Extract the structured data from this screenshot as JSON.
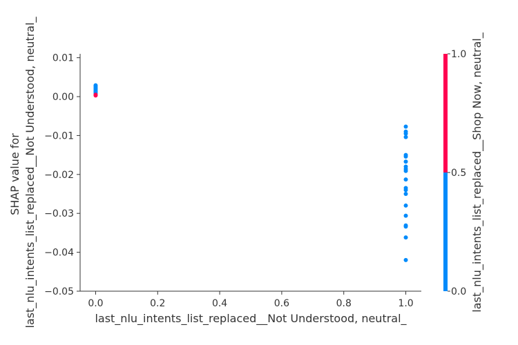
{
  "chart_data": {
    "type": "scatter",
    "title": "",
    "xlabel": "last_nlu_intents_list_replaced__Not Understood, neutral_",
    "ylabel_line1": "SHAP value for",
    "ylabel_line2": "last_nlu_intents_list_replaced__Not Understood, neutral_",
    "xlim": [
      -0.05,
      1.05
    ],
    "ylim": [
      -0.05,
      0.011
    ],
    "xticks": [
      0.0,
      0.2,
      0.4,
      0.6,
      0.8,
      1.0
    ],
    "xtick_labels": [
      "0.0",
      "0.2",
      "0.4",
      "0.6",
      "0.8",
      "1.0"
    ],
    "yticks": [
      0.01,
      0.0,
      -0.01,
      -0.02,
      -0.03,
      -0.04,
      -0.05
    ],
    "ytick_labels": [
      "0.01",
      "0.00",
      "−0.01",
      "−0.02",
      "−0.03",
      "−0.04",
      "−0.05"
    ],
    "grid": false,
    "colorbar": {
      "label": "last_nlu_intents_list_replaced__Shop Now, neutral_",
      "ticks": [
        0.0,
        0.5,
        1.0
      ],
      "tick_labels": [
        "0.0",
        "0.5",
        "1.0"
      ],
      "low_color": "#008bfb",
      "high_color": "#ff0051"
    },
    "points": [
      {
        "x": 0.0,
        "y": 0.0029,
        "c": 0
      },
      {
        "x": 0.0,
        "y": 0.0026,
        "c": 0
      },
      {
        "x": 0.0,
        "y": 0.0023,
        "c": 0
      },
      {
        "x": 0.0,
        "y": 0.002,
        "c": 0
      },
      {
        "x": 0.0,
        "y": 0.0017,
        "c": 0
      },
      {
        "x": 0.0,
        "y": 0.0014,
        "c": 0
      },
      {
        "x": 0.0,
        "y": 0.0011,
        "c": 0
      },
      {
        "x": 0.0,
        "y": 0.0008,
        "c": 0
      },
      {
        "x": 0.0,
        "y": 0.0005,
        "c": 1
      },
      {
        "x": 0.0,
        "y": 0.0003,
        "c": 1
      },
      {
        "x": 1.0,
        "y": -0.0077,
        "c": 0
      },
      {
        "x": 1.0,
        "y": -0.009,
        "c": 0
      },
      {
        "x": 1.0,
        "y": -0.0095,
        "c": 0
      },
      {
        "x": 1.0,
        "y": -0.0104,
        "c": 0
      },
      {
        "x": 1.0,
        "y": -0.015,
        "c": 0
      },
      {
        "x": 1.0,
        "y": -0.0154,
        "c": 0
      },
      {
        "x": 1.0,
        "y": -0.0167,
        "c": 0
      },
      {
        "x": 1.0,
        "y": -0.018,
        "c": 0
      },
      {
        "x": 1.0,
        "y": -0.0186,
        "c": 0
      },
      {
        "x": 1.0,
        "y": -0.0191,
        "c": 0
      },
      {
        "x": 1.0,
        "y": -0.0213,
        "c": 0
      },
      {
        "x": 1.0,
        "y": -0.0235,
        "c": 0
      },
      {
        "x": 1.0,
        "y": -0.024,
        "c": 0
      },
      {
        "x": 1.0,
        "y": -0.025,
        "c": 0
      },
      {
        "x": 1.0,
        "y": -0.028,
        "c": 0
      },
      {
        "x": 1.0,
        "y": -0.0306,
        "c": 0
      },
      {
        "x": 1.0,
        "y": -0.0331,
        "c": 0
      },
      {
        "x": 1.0,
        "y": -0.0334,
        "c": 0
      },
      {
        "x": 1.0,
        "y": -0.0362,
        "c": 0
      },
      {
        "x": 1.0,
        "y": -0.042,
        "c": 0
      }
    ]
  }
}
